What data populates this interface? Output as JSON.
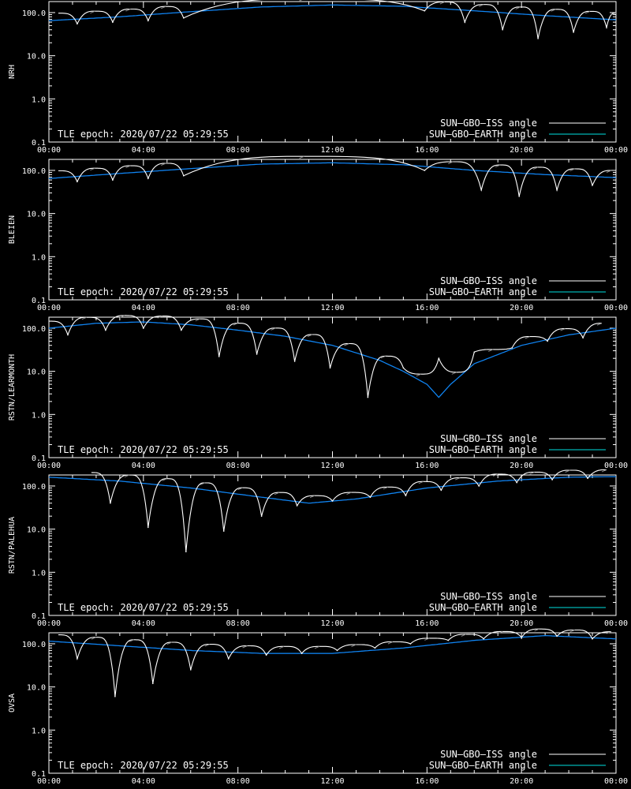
{
  "figure": {
    "x_ticks": [
      "00:00",
      "04:00",
      "08:00",
      "12:00",
      "16:00",
      "20:00",
      "00:00"
    ],
    "y_ticks": [
      "0.1",
      "1.0",
      "10.0",
      "100.0"
    ],
    "tle_label": "TLE epoch: 2020/07/22 05:29:55",
    "legend": [
      {
        "label": "SUN–GBO–ISS angle",
        "color": "#ffffff"
      },
      {
        "label": "SUN–GBO–EARTH angle",
        "color": "#00e0e0"
      }
    ]
  },
  "chart_data": [
    {
      "type": "line",
      "station": "NRH",
      "xlabel": "",
      "ylabel": "NRH",
      "xlim": [
        0,
        24
      ],
      "ylim": [
        0.1,
        180
      ],
      "yscale": "log",
      "grid": false,
      "legend_position": "bottom-right",
      "earth_curve": {
        "x": [
          0,
          3,
          6,
          9,
          12,
          15,
          18,
          21,
          24
        ],
        "y": [
          65,
          80,
          105,
          135,
          150,
          140,
          110,
          85,
          68
        ]
      },
      "iss_minima": [
        {
          "x": 1.2,
          "y": 55
        },
        {
          "x": 2.7,
          "y": 60
        },
        {
          "x": 4.2,
          "y": 65
        },
        {
          "x": 5.7,
          "y": 75
        },
        {
          "x": 15.9,
          "y": 110
        },
        {
          "x": 17.6,
          "y": 60
        },
        {
          "x": 19.2,
          "y": 40
        },
        {
          "x": 20.7,
          "y": 25
        },
        {
          "x": 22.2,
          "y": 35
        },
        {
          "x": 23.6,
          "y": 45
        }
      ]
    },
    {
      "type": "line",
      "station": "BLEIEN",
      "xlabel": "",
      "ylabel": "BLEIEN",
      "xlim": [
        0,
        24
      ],
      "ylim": [
        0.1,
        180
      ],
      "yscale": "log",
      "grid": false,
      "legend_position": "bottom-right",
      "earth_curve": {
        "x": [
          0,
          3,
          6,
          9,
          12,
          15,
          18,
          21,
          24
        ],
        "y": [
          65,
          85,
          110,
          140,
          150,
          135,
          100,
          80,
          68
        ]
      },
      "iss_minima": [
        {
          "x": 1.2,
          "y": 55
        },
        {
          "x": 2.7,
          "y": 60
        },
        {
          "x": 4.2,
          "y": 65
        },
        {
          "x": 5.7,
          "y": 75
        },
        {
          "x": 15.9,
          "y": 100
        },
        {
          "x": 18.3,
          "y": 35
        },
        {
          "x": 19.9,
          "y": 25
        },
        {
          "x": 21.5,
          "y": 35
        },
        {
          "x": 23.0,
          "y": 45
        }
      ]
    },
    {
      "type": "line",
      "station": "RSTN/LEARMONTH",
      "xlabel": "",
      "ylabel": "RSTN/LEARMONTH",
      "xlim": [
        0,
        24
      ],
      "ylim": [
        0.1,
        180
      ],
      "yscale": "log",
      "grid": false,
      "legend_position": "bottom-right",
      "earth_curve": {
        "x": [
          0,
          2,
          4,
          6,
          8,
          10,
          12,
          14,
          15,
          16,
          16.5,
          17,
          18,
          20,
          22,
          24
        ],
        "y": [
          100,
          130,
          140,
          120,
          90,
          65,
          40,
          18,
          10,
          5,
          2.5,
          5,
          15,
          40,
          70,
          100
        ]
      },
      "iss_minima": [
        {
          "x": 0.8,
          "y": 70
        },
        {
          "x": 2.4,
          "y": 90
        },
        {
          "x": 4.0,
          "y": 100
        },
        {
          "x": 5.6,
          "y": 90
        },
        {
          "x": 7.2,
          "y": 22
        },
        {
          "x": 8.8,
          "y": 25
        },
        {
          "x": 10.4,
          "y": 17
        },
        {
          "x": 11.9,
          "y": 12
        },
        {
          "x": 13.5,
          "y": 2.5
        },
        {
          "x": 15.0,
          "y": 12
        },
        {
          "x": 16.5,
          "y": 20
        },
        {
          "x": 18.0,
          "y": 28
        },
        {
          "x": 19.6,
          "y": 35
        },
        {
          "x": 21.1,
          "y": 50
        },
        {
          "x": 22.6,
          "y": 60
        }
      ]
    },
    {
      "type": "line",
      "station": "RSTN/PALEHUA",
      "xlabel": "",
      "ylabel": "RSTN/PALEHUA",
      "xlim": [
        0,
        24
      ],
      "ylim": [
        0.1,
        180
      ],
      "yscale": "log",
      "grid": false,
      "legend_position": "bottom-right",
      "earth_curve": {
        "x": [
          0,
          3,
          6,
          9,
          11,
          13,
          16,
          19,
          22,
          24
        ],
        "y": [
          160,
          130,
          90,
          55,
          40,
          50,
          90,
          130,
          160,
          165
        ]
      },
      "iss_minima": [
        {
          "x": 2.6,
          "y": 40
        },
        {
          "x": 4.2,
          "y": 11
        },
        {
          "x": 5.8,
          "y": 3
        },
        {
          "x": 7.4,
          "y": 9
        },
        {
          "x": 9.0,
          "y": 20
        },
        {
          "x": 10.5,
          "y": 35
        },
        {
          "x": 12.0,
          "y": 45
        },
        {
          "x": 13.6,
          "y": 55
        },
        {
          "x": 15.1,
          "y": 60
        },
        {
          "x": 16.6,
          "y": 80
        },
        {
          "x": 18.2,
          "y": 100
        },
        {
          "x": 19.8,
          "y": 120
        },
        {
          "x": 21.3,
          "y": 140
        },
        {
          "x": 22.8,
          "y": 150
        }
      ]
    },
    {
      "type": "line",
      "station": "OVSA",
      "xlabel": "",
      "ylabel": "OVSA",
      "xlim": [
        0,
        24
      ],
      "ylim": [
        0.1,
        180
      ],
      "yscale": "log",
      "grid": false,
      "legend_position": "bottom-right",
      "earth_curve": {
        "x": [
          0,
          3,
          6,
          9,
          12,
          15,
          18,
          21,
          24
        ],
        "y": [
          115,
          90,
          70,
          60,
          60,
          80,
          120,
          155,
          130
        ]
      },
      "iss_minima": [
        {
          "x": 1.2,
          "y": 45
        },
        {
          "x": 2.8,
          "y": 6
        },
        {
          "x": 4.4,
          "y": 12
        },
        {
          "x": 6.0,
          "y": 25
        },
        {
          "x": 7.6,
          "y": 45
        },
        {
          "x": 9.2,
          "y": 55
        },
        {
          "x": 10.7,
          "y": 60
        },
        {
          "x": 12.2,
          "y": 70
        },
        {
          "x": 13.8,
          "y": 80
        },
        {
          "x": 15.3,
          "y": 100
        },
        {
          "x": 16.9,
          "y": 120
        },
        {
          "x": 18.4,
          "y": 130
        },
        {
          "x": 20.0,
          "y": 140
        },
        {
          "x": 21.5,
          "y": 150
        },
        {
          "x": 23.0,
          "y": 130
        }
      ]
    }
  ]
}
